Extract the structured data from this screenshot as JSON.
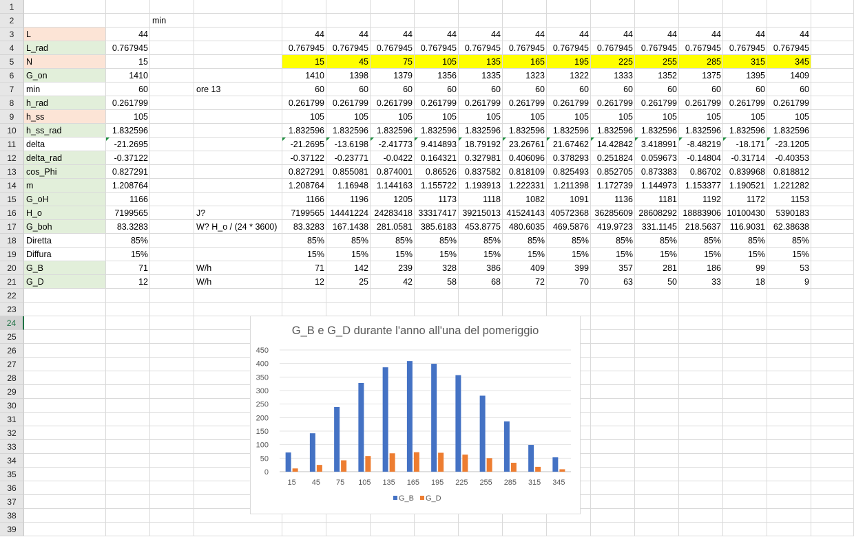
{
  "row_headers": [
    "1",
    "2",
    "3",
    "4",
    "5",
    "6",
    "7",
    "8",
    "9",
    "10",
    "11",
    "12",
    "13",
    "14",
    "15",
    "16",
    "17",
    "18",
    "19",
    "20",
    "21",
    "22",
    "23",
    "24",
    "25",
    "26",
    "27",
    "28",
    "29",
    "30",
    "31",
    "32",
    "33",
    "34",
    "35",
    "36",
    "37",
    "38",
    "39"
  ],
  "sheet": {
    "row2": {
      "col_c": "min"
    },
    "rows": [
      {
        "label": "L",
        "b": "44",
        "d": "",
        "vals": [
          "44",
          "44",
          "44",
          "44",
          "44",
          "44",
          "44",
          "44",
          "44",
          "44",
          "44",
          "44"
        ]
      },
      {
        "label": "L_rad",
        "b": "0.767945",
        "d": "",
        "vals": [
          "0.767945",
          "0.767945",
          "0.767945",
          "0.767945",
          "0.767945",
          "0.767945",
          "0.767945",
          "0.767945",
          "0.767945",
          "0.767945",
          "0.767945",
          "0.767945"
        ]
      },
      {
        "label": "N",
        "b": "15",
        "d": "",
        "vals": [
          "15",
          "45",
          "75",
          "105",
          "135",
          "165",
          "195",
          "225",
          "255",
          "285",
          "315",
          "345"
        ]
      },
      {
        "label": "G_on",
        "b": "1410",
        "d": "",
        "vals": [
          "1410",
          "1398",
          "1379",
          "1356",
          "1335",
          "1323",
          "1322",
          "1333",
          "1352",
          "1375",
          "1395",
          "1409"
        ]
      },
      {
        "label": "min",
        "b": "60",
        "d": "ore 13",
        "vals": [
          "60",
          "60",
          "60",
          "60",
          "60",
          "60",
          "60",
          "60",
          "60",
          "60",
          "60",
          "60"
        ]
      },
      {
        "label": "h_rad",
        "b": "0.261799",
        "d": "",
        "vals": [
          "0.261799",
          "0.261799",
          "0.261799",
          "0.261799",
          "0.261799",
          "0.261799",
          "0.261799",
          "0.261799",
          "0.261799",
          "0.261799",
          "0.261799",
          "0.261799"
        ]
      },
      {
        "label": "h_ss",
        "b": "105",
        "d": "",
        "vals": [
          "105",
          "105",
          "105",
          "105",
          "105",
          "105",
          "105",
          "105",
          "105",
          "105",
          "105",
          "105"
        ]
      },
      {
        "label": "h_ss_rad",
        "b": "1.832596",
        "d": "",
        "vals": [
          "1.832596",
          "1.832596",
          "1.832596",
          "1.832596",
          "1.832596",
          "1.832596",
          "1.832596",
          "1.832596",
          "1.832596",
          "1.832596",
          "1.832596",
          "1.832596"
        ]
      },
      {
        "label": "delta",
        "b": "-21.2695",
        "d": "",
        "vals": [
          "-21.2695",
          "-13.6198",
          "-2.41773",
          "9.414893",
          "18.79192",
          "23.26761",
          "21.67462",
          "14.42842",
          "3.418991",
          "-8.48219",
          "-18.171",
          "-23.1205"
        ]
      },
      {
        "label": "delta_rad",
        "b": "-0.37122",
        "d": "",
        "vals": [
          "-0.37122",
          "-0.23771",
          "-0.0422",
          "0.164321",
          "0.327981",
          "0.406096",
          "0.378293",
          "0.251824",
          "0.059673",
          "-0.14804",
          "-0.31714",
          "-0.40353"
        ]
      },
      {
        "label": "cos_Phi",
        "b": "0.827291",
        "d": "",
        "vals": [
          "0.827291",
          "0.855081",
          "0.874001",
          "0.86526",
          "0.837582",
          "0.818109",
          "0.825493",
          "0.852705",
          "0.873383",
          "0.86702",
          "0.839968",
          "0.818812"
        ]
      },
      {
        "label": "m",
        "b": "1.208764",
        "d": "",
        "vals": [
          "1.208764",
          "1.16948",
          "1.144163",
          "1.155722",
          "1.193913",
          "1.222331",
          "1.211398",
          "1.172739",
          "1.144973",
          "1.153377",
          "1.190521",
          "1.221282"
        ]
      },
      {
        "label": "G_oH",
        "b": "1166",
        "d": "",
        "vals": [
          "1166",
          "1196",
          "1205",
          "1173",
          "1118",
          "1082",
          "1091",
          "1136",
          "1181",
          "1192",
          "1172",
          "1153"
        ]
      },
      {
        "label": "H_o",
        "b": "7199565",
        "d": "J?",
        "vals": [
          "7199565",
          "14441224",
          "24283418",
          "33317417",
          "39215013",
          "41524143",
          "40572368",
          "36285609",
          "28608292",
          "18883906",
          "10100430",
          "5390183"
        ]
      },
      {
        "label": "G_boh",
        "b": "83.3283",
        "d": "W? H_o / (24 * 3600)",
        "vals": [
          "83.3283",
          "167.1438",
          "281.0581",
          "385.6183",
          "453.8775",
          "480.6035",
          "469.5876",
          "419.9723",
          "331.1145",
          "218.5637",
          "116.9031",
          "62.38638"
        ]
      },
      {
        "label": "Diretta",
        "b": "85%",
        "d": "",
        "vals": [
          "85%",
          "85%",
          "85%",
          "85%",
          "85%",
          "85%",
          "85%",
          "85%",
          "85%",
          "85%",
          "85%",
          "85%"
        ]
      },
      {
        "label": "Diffura",
        "b": "15%",
        "d": "",
        "vals": [
          "15%",
          "15%",
          "15%",
          "15%",
          "15%",
          "15%",
          "15%",
          "15%",
          "15%",
          "15%",
          "15%",
          "15%"
        ]
      },
      {
        "label": "G_B",
        "b": "71",
        "d": "W/h",
        "vals": [
          "71",
          "142",
          "239",
          "328",
          "386",
          "409",
          "399",
          "357",
          "281",
          "186",
          "99",
          "53"
        ]
      },
      {
        "label": "G_D",
        "b": "12",
        "d": "W/h",
        "vals": [
          "12",
          "25",
          "42",
          "58",
          "68",
          "72",
          "70",
          "63",
          "50",
          "33",
          "18",
          "9"
        ]
      }
    ]
  },
  "colors": {
    "input_fill": "#fce4d6",
    "calc_fill": "#e2efda",
    "highlight": "#ffff00",
    "series_gb": "#4472c4",
    "series_gd": "#ed7d31"
  },
  "chart_data": {
    "type": "bar",
    "title": "G_B e G_D durante l'anno all'una del pomeriggio",
    "categories": [
      "15",
      "45",
      "75",
      "105",
      "135",
      "165",
      "195",
      "225",
      "255",
      "285",
      "315",
      "345"
    ],
    "series": [
      {
        "name": "G_B",
        "values": [
          71,
          142,
          239,
          328,
          386,
          409,
          399,
          357,
          281,
          186,
          99,
          53
        ]
      },
      {
        "name": "G_D",
        "values": [
          12,
          25,
          42,
          58,
          68,
          72,
          70,
          63,
          50,
          33,
          18,
          9
        ]
      }
    ],
    "ylim": [
      0,
      450
    ],
    "yticks": [
      0,
      50,
      100,
      150,
      200,
      250,
      300,
      350,
      400,
      450
    ],
    "grid": true,
    "legend": "bottom"
  }
}
